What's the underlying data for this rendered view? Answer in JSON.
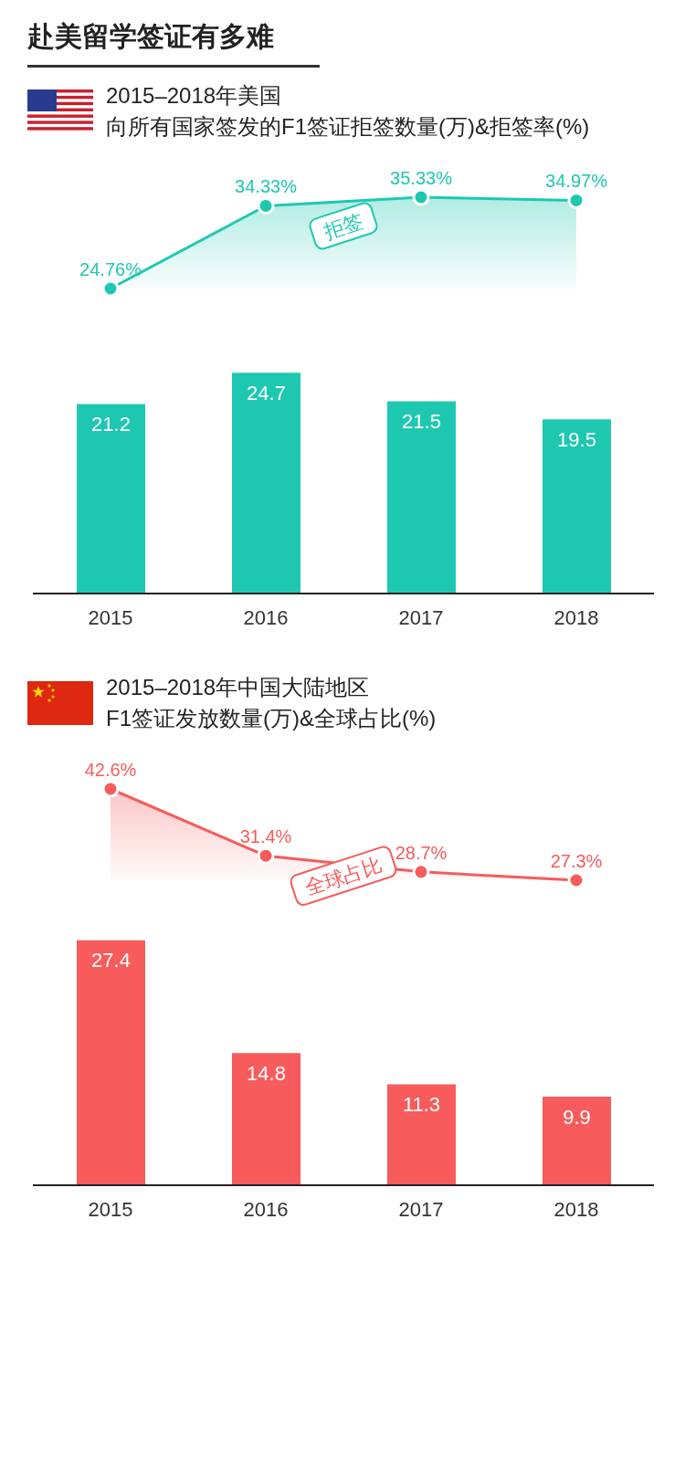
{
  "chart_data": [
    {
      "type": "area",
      "annotations": [
        "赴美留学签证有多难"
      ],
      "title": "2015–2018年美国",
      "subtitle": "向所有国家签发的F1签证拒签数量(万)&拒签率(%)",
      "categories": [
        null,
        null,
        null,
        null
      ],
      "tick_labels": false,
      "series": [
        {
          "name": "拒签",
          "color": "#1ec8b0",
          "values": [
            24.76,
            34.33,
            35.33,
            34.97
          ],
          "value_labels": [
            "24.76%",
            "34.33%",
            "35.33%",
            "34.97%"
          ]
        }
      ]
    },
    {
      "type": "bar",
      "categories": [
        "2015",
        "2016",
        "2017",
        "2018"
      ],
      "data_labels": true,
      "series": [
        {
          "color": "#1ec8b0",
          "values": [
            21.2,
            24.7,
            21.5,
            19.5
          ]
        }
      ]
    },
    {
      "type": "area",
      "title": "2015–2018年中国大陆地区",
      "subtitle": "F1签证发放数量(万)&全球占比(%)",
      "categories": [
        null,
        null,
        null,
        null
      ],
      "tick_labels": false,
      "series": [
        {
          "name": "全球占比",
          "color": "#f75b5b",
          "values": [
            42.6,
            31.4,
            28.7,
            27.3
          ],
          "value_labels": [
            "42.6%",
            "31.4%",
            "28.7%",
            "27.3%"
          ]
        }
      ]
    },
    {
      "type": "bar",
      "categories": [
        "2015",
        "2016",
        "2017",
        "2018"
      ],
      "data_labels": true,
      "series": [
        {
          "color": "#f75b5b",
          "values": [
            27.4,
            14.8,
            11.3,
            9.9
          ]
        }
      ]
    }
  ]
}
